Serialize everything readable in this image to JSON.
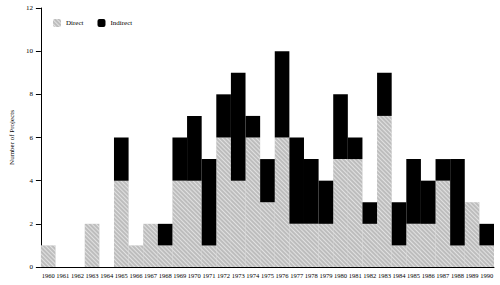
{
  "chart_data": {
    "type": "bar",
    "y_label": "Number of Projects",
    "categories": [
      "1960",
      "1961",
      "1962",
      "1963",
      "1964",
      "1965",
      "1966",
      "1967",
      "1968",
      "1969",
      "1970",
      "1971",
      "1972",
      "1973",
      "1974",
      "1975",
      "1976",
      "1977",
      "1978",
      "1979",
      "1980",
      "1981",
      "1982",
      "1983",
      "1984",
      "1985",
      "1986",
      "1987",
      "1988",
      "1989",
      "1990"
    ],
    "series": [
      {
        "name": "Direct",
        "color": "#bdbdbd",
        "values": [
          1,
          0,
          0,
          2,
          0,
          4,
          1,
          2,
          1,
          4,
          4,
          1,
          6,
          4,
          6,
          3,
          6,
          2,
          2,
          2,
          5,
          5,
          2,
          7,
          1,
          2,
          2,
          4,
          1,
          3,
          1
        ]
      },
      {
        "name": "Indirect",
        "color": "#000000",
        "values": [
          0,
          0,
          0,
          0,
          0,
          2,
          0,
          0,
          1,
          2,
          3,
          4,
          2,
          5,
          1,
          2,
          4,
          4,
          3,
          2,
          3,
          1,
          1,
          2,
          2,
          3,
          2,
          1,
          4,
          0,
          1
        ]
      }
    ],
    "stacked": true,
    "ylim": [
      0,
      12
    ],
    "yticks": [
      0,
      2,
      4,
      6,
      8,
      10,
      12
    ],
    "grid": false,
    "legend": "top-left"
  }
}
